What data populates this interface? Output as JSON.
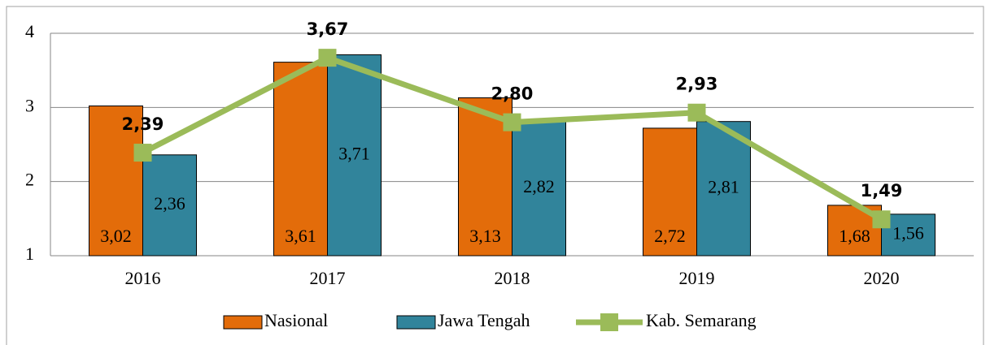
{
  "chart_data": {
    "type": "bar+line",
    "categories": [
      "2016",
      "2017",
      "2018",
      "2019",
      "2020"
    ],
    "series": [
      {
        "name": "Nasional",
        "type": "bar",
        "color": "#e36c0a",
        "values": [
          3.02,
          3.61,
          3.13,
          2.72,
          1.68
        ],
        "value_labels": [
          "3,02",
          "3,61",
          "3,13",
          "2,72",
          "1,68"
        ]
      },
      {
        "name": "Jawa Tengah",
        "type": "bar",
        "color": "#31849b",
        "values": [
          2.36,
          3.71,
          2.82,
          2.81,
          1.56
        ],
        "value_labels": [
          "2,36",
          "3,71",
          "2,82",
          "2,81",
          "1,56"
        ]
      },
      {
        "name": "Kab. Semarang",
        "type": "line",
        "color": "#9bbb59",
        "values": [
          2.39,
          3.67,
          2.8,
          2.93,
          1.49
        ],
        "value_labels": [
          "2,39",
          "3,67",
          "2,80",
          "2,93",
          "1,49"
        ]
      }
    ],
    "ylim": [
      1,
      4
    ],
    "yticks": [
      1,
      2,
      3,
      4
    ],
    "grid": true,
    "legend": "bottom"
  }
}
